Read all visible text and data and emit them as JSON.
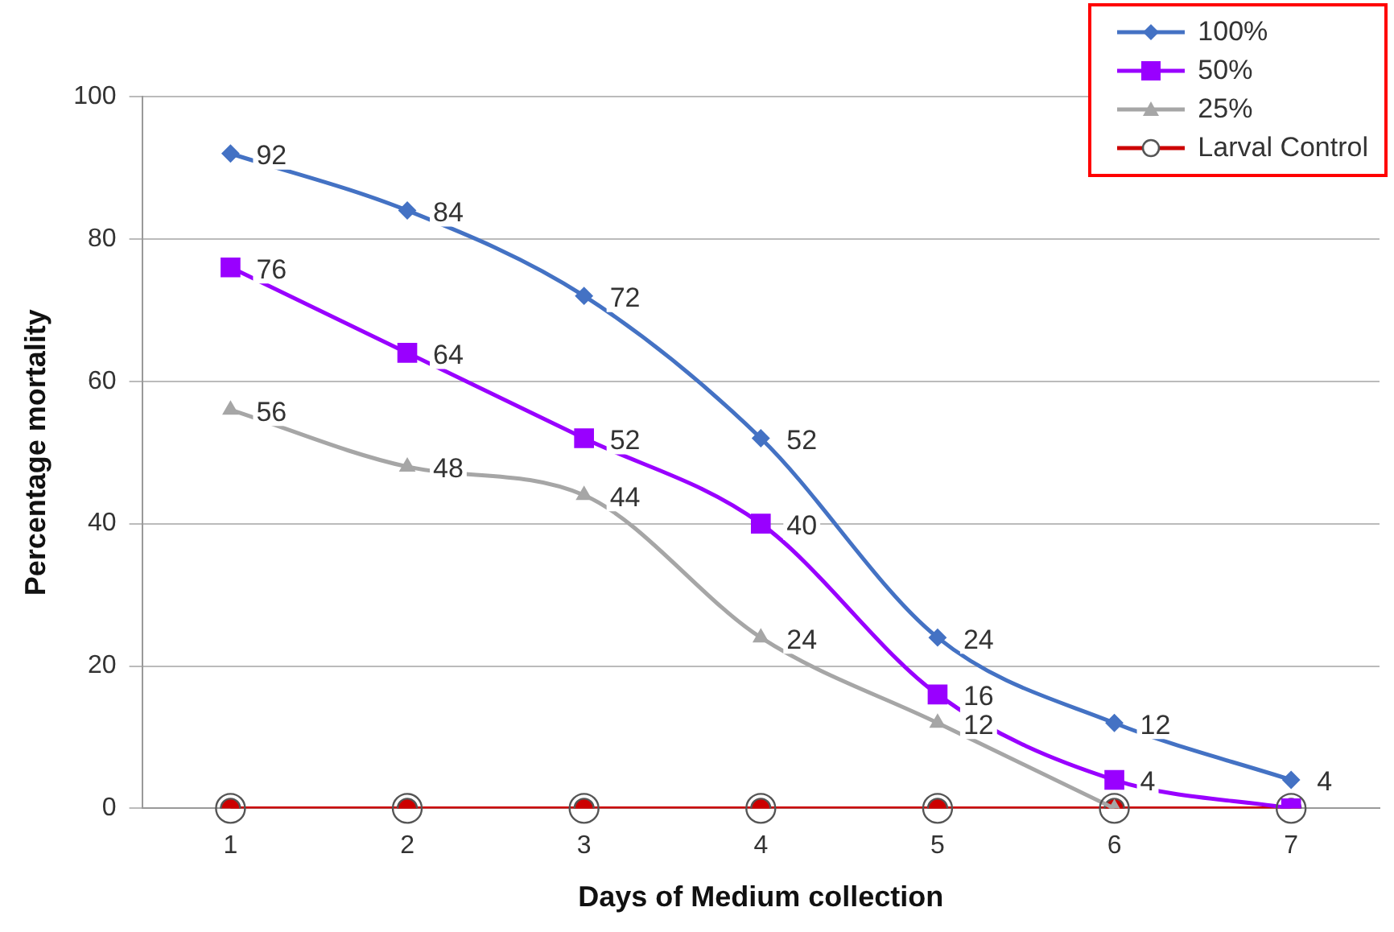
{
  "chart_data": {
    "type": "line",
    "xlabel": "Days of Medium collection",
    "ylabel": "Percentage mortality",
    "categories": [
      "1",
      "2",
      "3",
      "4",
      "5",
      "6",
      "7"
    ],
    "ylim": [
      0,
      100
    ],
    "yticks": [
      0,
      20,
      40,
      60,
      80,
      100
    ],
    "grid": "y",
    "legend": "top right",
    "series": [
      {
        "name": "100%",
        "color": "#4472c4",
        "marker": "diamond",
        "values": [
          92,
          84,
          72,
          52,
          24,
          12,
          4
        ],
        "value_labels": [
          "92",
          "84",
          "72",
          "52",
          "24",
          "12",
          "4"
        ]
      },
      {
        "name": "50%",
        "color": "#9900ff",
        "marker": "square",
        "values": [
          76,
          64,
          52,
          40,
          16,
          4,
          0
        ],
        "value_labels": [
          "76",
          "64",
          "52",
          "40",
          "16",
          "4",
          null
        ]
      },
      {
        "name": "25%",
        "color": "#a6a6a6",
        "marker": "triangle",
        "values": [
          56,
          48,
          44,
          24,
          12,
          0,
          null
        ],
        "value_labels": [
          "56",
          "48",
          "44",
          "24",
          "12",
          null,
          null
        ]
      },
      {
        "name": "Larval Control",
        "color": "#cc0000",
        "marker": "circle",
        "values": [
          0,
          0,
          0,
          0,
          0,
          0,
          0
        ]
      }
    ]
  }
}
